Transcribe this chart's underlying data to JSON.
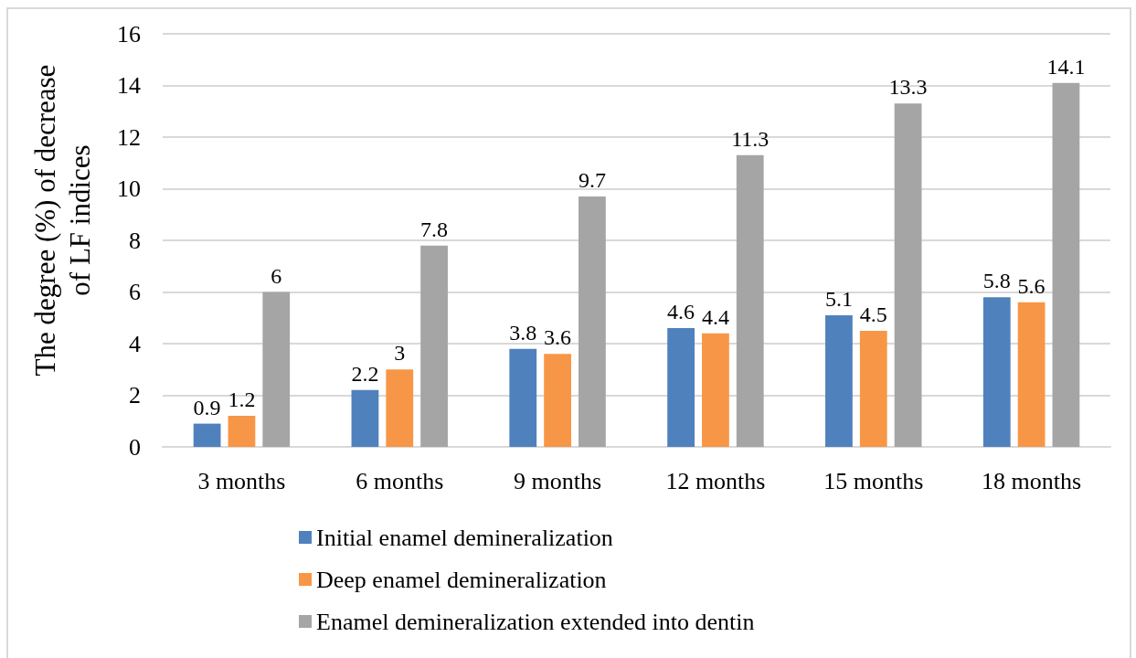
{
  "chart_data": {
    "type": "bar",
    "ylabel": "The degree (%) of decrease of LF indices",
    "categories": [
      "3 months",
      "6 months",
      "9 months",
      "12 months",
      "15 months",
      "18 months"
    ],
    "series": [
      {
        "name": "Initial enamel demineralization",
        "color": "#4f81bd",
        "values": [
          0.9,
          2.2,
          3.8,
          4.6,
          5.1,
          5.8
        ]
      },
      {
        "name": "Deep enamel demineralization",
        "color": "#f79646",
        "values": [
          1.2,
          3,
          3.6,
          4.4,
          4.5,
          5.6
        ]
      },
      {
        "name": "Enamel demineralization extended into dentin",
        "color": "#a5a5a5",
        "values": [
          6,
          7.8,
          9.7,
          11.3,
          13.3,
          14.1
        ]
      }
    ],
    "ylim": [
      0,
      16
    ],
    "yticks": [
      0,
      2,
      4,
      6,
      8,
      10,
      12,
      14,
      16
    ],
    "grid": "y",
    "legend": "bottom",
    "data_labels": true
  }
}
